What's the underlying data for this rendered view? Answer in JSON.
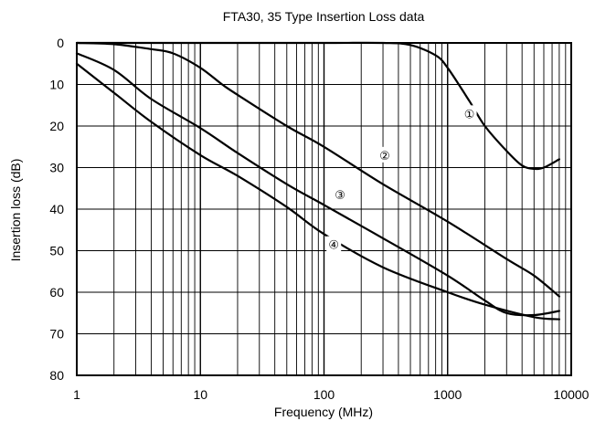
{
  "chart_data": {
    "type": "line",
    "title": "FTA30, 35 Type Insertion Loss data",
    "xlabel": "Frequency (MHz)",
    "ylabel": "Insertion loss (dB)",
    "xscale": "log",
    "xlim": [
      1,
      10000
    ],
    "ylim": [
      0,
      80
    ],
    "y_inverted": true,
    "grid": true,
    "legend": "none",
    "x_ticks": [
      "1",
      "10",
      "100",
      "1000",
      "10000"
    ],
    "y_ticks": [
      "0",
      "10",
      "20",
      "30",
      "40",
      "50",
      "60",
      "70",
      "80"
    ],
    "series": [
      {
        "name": "①",
        "label_at": [
          1500,
          17
        ],
        "points": [
          [
            1,
            0
          ],
          [
            10,
            0
          ],
          [
            100,
            0
          ],
          [
            300,
            0
          ],
          [
            500,
            0.5
          ],
          [
            800,
            3
          ],
          [
            1000,
            6
          ],
          [
            1500,
            14
          ],
          [
            2000,
            20
          ],
          [
            3000,
            26
          ],
          [
            4000,
            29.5
          ],
          [
            5000,
            30.3
          ],
          [
            6000,
            30
          ],
          [
            8000,
            28
          ]
        ]
      },
      {
        "name": "②",
        "label_at": [
          310,
          27
        ],
        "points": [
          [
            1,
            0
          ],
          [
            2,
            0.3
          ],
          [
            4,
            1.5
          ],
          [
            6,
            2.5
          ],
          [
            10,
            6
          ],
          [
            15,
            10
          ],
          [
            20,
            12.5
          ],
          [
            50,
            20
          ],
          [
            100,
            25
          ],
          [
            300,
            34
          ],
          [
            1000,
            43
          ],
          [
            3000,
            52
          ],
          [
            5000,
            56
          ],
          [
            8000,
            61
          ]
        ]
      },
      {
        "name": "③",
        "label_at": [
          135,
          36.5
        ],
        "points": [
          [
            1,
            2.5
          ],
          [
            2,
            6.5
          ],
          [
            4,
            13.5
          ],
          [
            10,
            20.5
          ],
          [
            20,
            26.5
          ],
          [
            50,
            34
          ],
          [
            100,
            39
          ],
          [
            300,
            47
          ],
          [
            1000,
            56
          ],
          [
            2000,
            62
          ],
          [
            3000,
            65
          ],
          [
            5000,
            65.5
          ],
          [
            8000,
            64.5
          ]
        ]
      },
      {
        "name": "④",
        "label_at": [
          120,
          48.5
        ],
        "points": [
          [
            1,
            5
          ],
          [
            2,
            12
          ],
          [
            4,
            19
          ],
          [
            10,
            27
          ],
          [
            20,
            32
          ],
          [
            50,
            39.5
          ],
          [
            100,
            46
          ],
          [
            300,
            54
          ],
          [
            1000,
            60
          ],
          [
            2000,
            63
          ],
          [
            5000,
            66
          ],
          [
            8000,
            66.5
          ]
        ]
      }
    ]
  }
}
